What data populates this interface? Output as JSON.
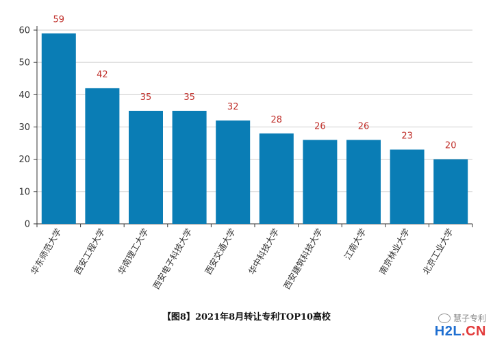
{
  "chart_data": {
    "type": "bar",
    "categories": [
      "华东师范大学",
      "西安工程大学",
      "华南理工大学",
      "西安电子科技大学",
      "西安交通大学",
      "华中科技大学",
      "西安建筑科技大学",
      "江南大学",
      "南京林业大学",
      "北京工业大学"
    ],
    "values": [
      59,
      42,
      35,
      35,
      32,
      28,
      26,
      26,
      23,
      20
    ],
    "ylim": [
      0,
      60
    ],
    "yticks": [
      0,
      10,
      20,
      30,
      40,
      50,
      60
    ],
    "grid": true,
    "bar_color": "#0a7db5",
    "label_color": "#c0302b",
    "grid_color": "#cccccc"
  },
  "caption": "【图8】2021年8月转让专利TOP10高校",
  "watermark": {
    "top_text": "慧子专利",
    "logo_parts": [
      "H2L",
      ".CN"
    ],
    "logo_colors": [
      "#1f6fd1",
      "#e23a3a"
    ]
  }
}
